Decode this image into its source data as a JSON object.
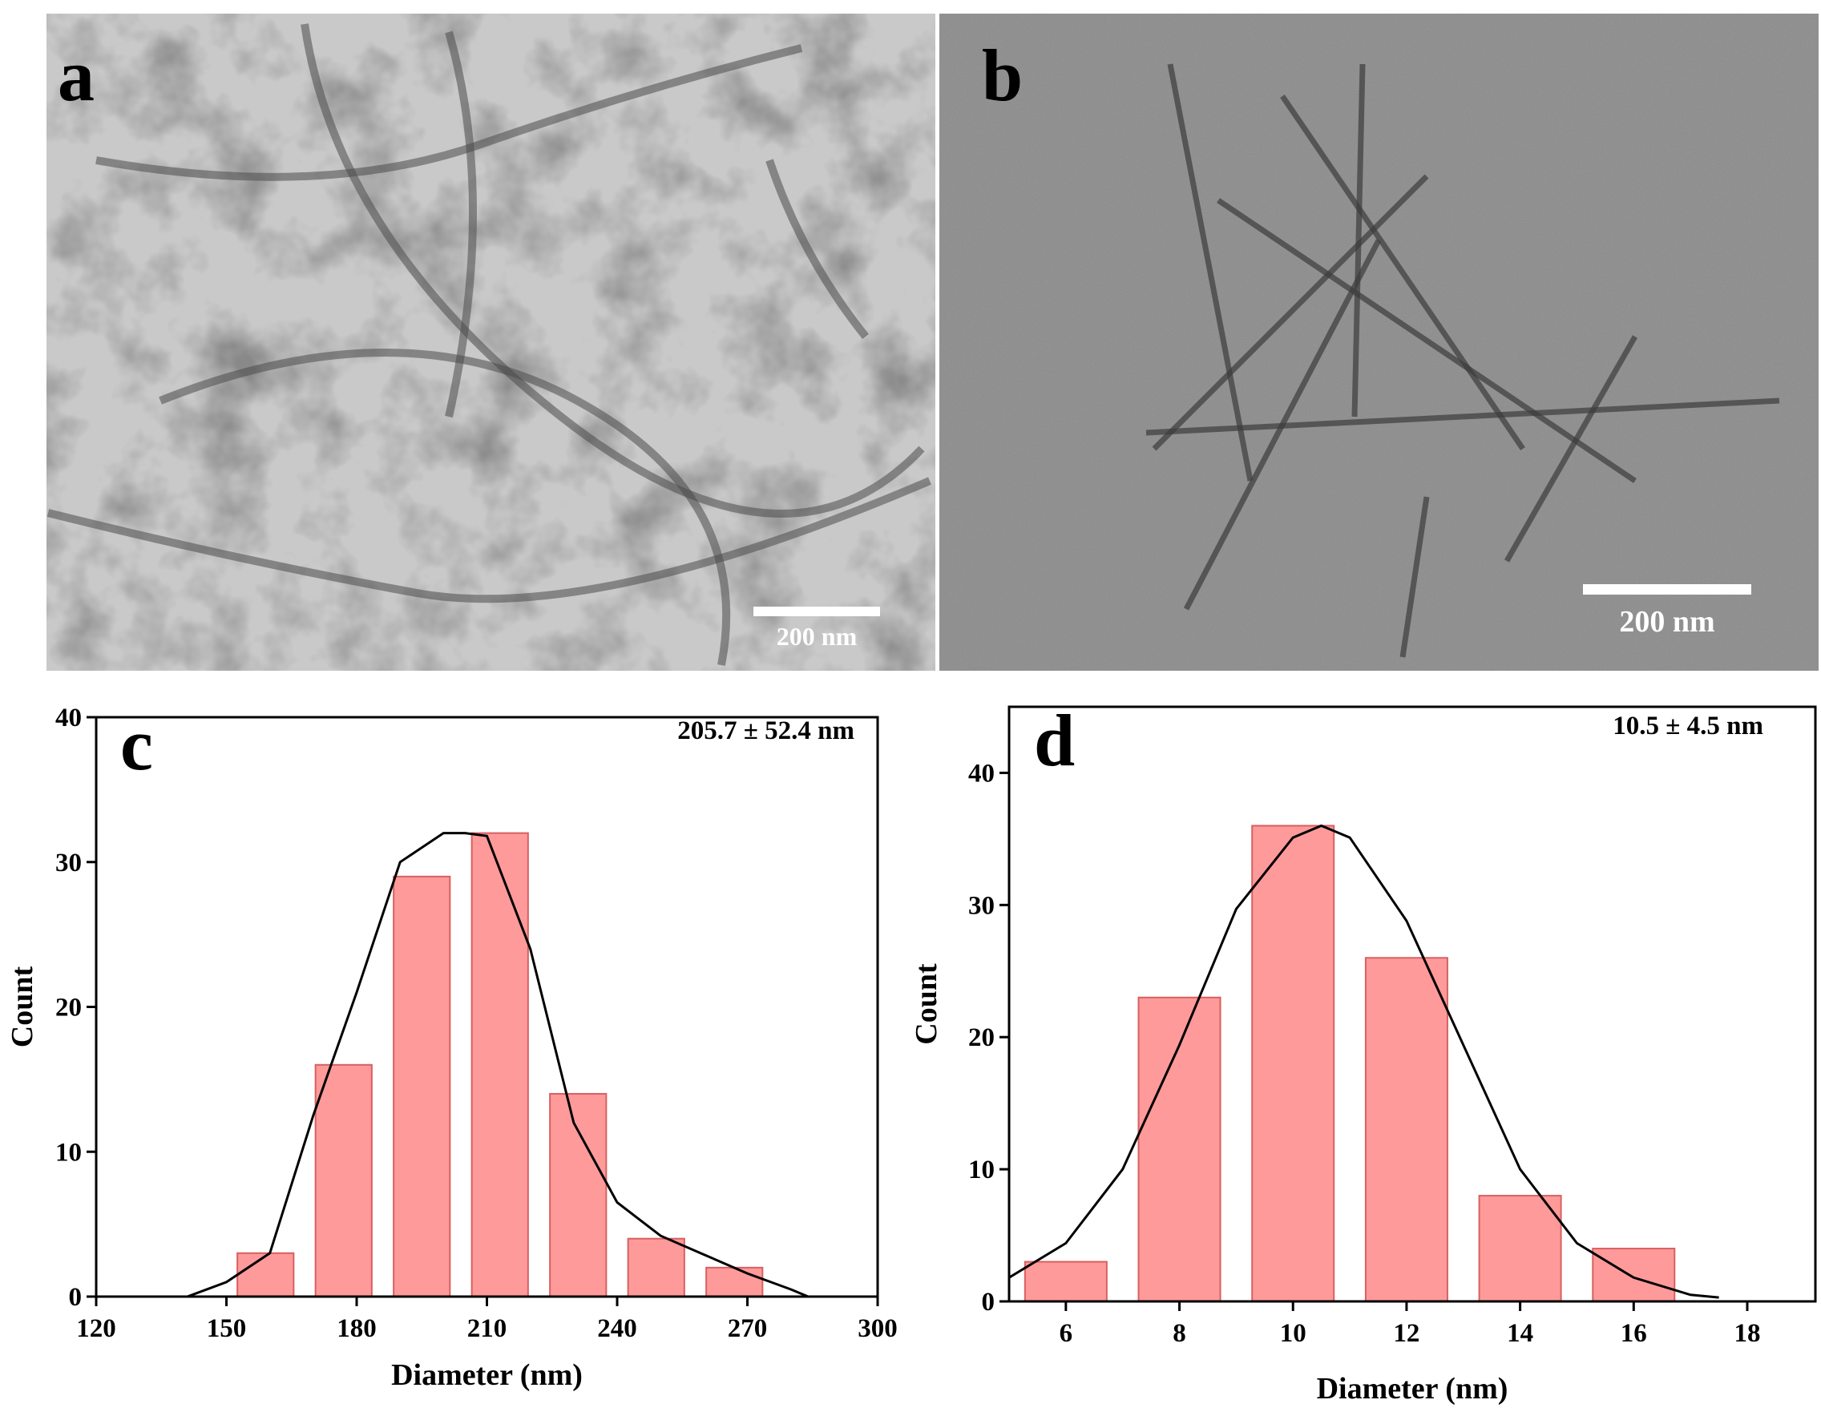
{
  "panels": [
    {
      "label": "a",
      "scale_bar": "200 nm"
    },
    {
      "label": "b",
      "scale_bar": "200 nm"
    }
  ],
  "chart_data": [
    {
      "type": "bar",
      "label": "c",
      "annotation": "205.7 ± 52.4 nm",
      "x_label": "Diameter (nm)",
      "y_label": "Count",
      "x": [
        159,
        177,
        195,
        213,
        231,
        249,
        267
      ],
      "values": [
        3,
        16,
        29,
        32,
        14,
        4,
        2
      ],
      "color": "#ff9a9a",
      "edge_color": "#d86060",
      "fit": {
        "x": [
          141,
          150,
          160,
          170,
          180,
          190,
          200,
          205,
          210,
          220,
          230,
          240,
          250,
          260,
          270,
          280,
          284
        ],
        "y": [
          0,
          1,
          3,
          12.5,
          21,
          30,
          32,
          32,
          31.8,
          24,
          12,
          6.5,
          4.2,
          2.9,
          1.6,
          0.5,
          0
        ],
        "color": "#000000"
      },
      "xlim": [
        120,
        300
      ],
      "xticks": [
        120,
        150,
        180,
        210,
        240,
        270,
        300
      ],
      "ylim": [
        0,
        40
      ],
      "yticks": [
        0,
        10,
        20,
        30,
        40
      ]
    },
    {
      "type": "bar",
      "label": "d",
      "annotation": "10.5 ± 4.5 nm",
      "x_label": "Diameter (nm)",
      "y_label": "Count",
      "x": [
        6,
        8,
        10,
        12,
        14,
        16
      ],
      "values": [
        3,
        23,
        36,
        26,
        8,
        4
      ],
      "color": "#ff9a9a",
      "edge_color": "#d86060",
      "fit": {
        "x": [
          5,
          6,
          7,
          8,
          9,
          10,
          10.5,
          11,
          12,
          13,
          14,
          15,
          16,
          17,
          17.5
        ],
        "y": [
          1.8,
          4.4,
          10,
          19.4,
          29.7,
          35.1,
          36,
          35.1,
          28.8,
          19.4,
          10,
          4.4,
          1.8,
          0.5,
          0.3
        ],
        "color": "#000000"
      },
      "xlim": [
        5,
        19.2
      ],
      "xticks": [
        6,
        8,
        10,
        12,
        14,
        16,
        18
      ],
      "ylim": [
        0,
        45
      ],
      "yticks": [
        0,
        10,
        20,
        30,
        40
      ]
    }
  ]
}
